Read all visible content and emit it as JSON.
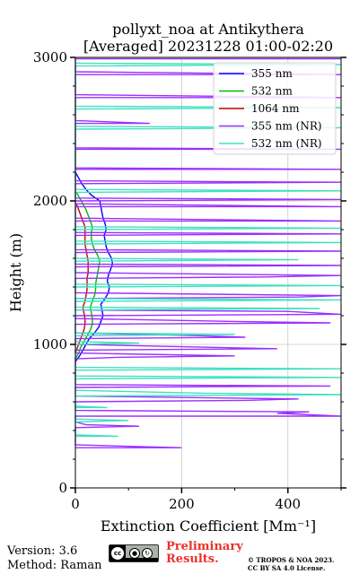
{
  "chart_data": {
    "type": "line",
    "title_line1": "pollyxt_noa at Antikythera",
    "title_line2": "[Averaged] 20231228 01:00-02:20",
    "xlabel": "Extinction Coefficient [Mm⁻¹]",
    "ylabel": "Height (m)",
    "xlim": [
      0,
      500
    ],
    "ylim": [
      0,
      3000
    ],
    "x_ticks": [
      0,
      200,
      400
    ],
    "y_ticks": [
      0,
      1000,
      2000,
      3000
    ],
    "grid": true,
    "legend_position": "top-right",
    "series": [
      {
        "name": "355 nm",
        "color": "#0000ff",
        "points": [
          [
            0,
            880
          ],
          [
            8,
            920
          ],
          [
            14,
            960
          ],
          [
            20,
            1000
          ],
          [
            26,
            1040
          ],
          [
            36,
            1080
          ],
          [
            44,
            1120
          ],
          [
            48,
            1160
          ],
          [
            52,
            1200
          ],
          [
            50,
            1240
          ],
          [
            48,
            1280
          ],
          [
            56,
            1320
          ],
          [
            62,
            1360
          ],
          [
            64,
            1400
          ],
          [
            60,
            1440
          ],
          [
            62,
            1480
          ],
          [
            66,
            1520
          ],
          [
            70,
            1560
          ],
          [
            68,
            1600
          ],
          [
            62,
            1640
          ],
          [
            58,
            1680
          ],
          [
            56,
            1720
          ],
          [
            54,
            1760
          ],
          [
            58,
            1800
          ],
          [
            56,
            1840
          ],
          [
            52,
            1880
          ],
          [
            50,
            1920
          ],
          [
            48,
            1960
          ],
          [
            46,
            2000
          ],
          [
            30,
            2040
          ],
          [
            20,
            2080
          ],
          [
            12,
            2120
          ],
          [
            6,
            2160
          ],
          [
            0,
            2200
          ]
        ]
      },
      {
        "name": "532 nm",
        "color": "#00bb00",
        "points": [
          [
            0,
            900
          ],
          [
            6,
            940
          ],
          [
            10,
            980
          ],
          [
            16,
            1020
          ],
          [
            22,
            1060
          ],
          [
            28,
            1100
          ],
          [
            32,
            1140
          ],
          [
            32,
            1180
          ],
          [
            30,
            1220
          ],
          [
            28,
            1260
          ],
          [
            32,
            1300
          ],
          [
            36,
            1340
          ],
          [
            38,
            1380
          ],
          [
            38,
            1420
          ],
          [
            40,
            1460
          ],
          [
            42,
            1500
          ],
          [
            44,
            1540
          ],
          [
            46,
            1580
          ],
          [
            42,
            1620
          ],
          [
            36,
            1660
          ],
          [
            32,
            1700
          ],
          [
            30,
            1740
          ],
          [
            30,
            1780
          ],
          [
            32,
            1820
          ],
          [
            28,
            1860
          ],
          [
            24,
            1900
          ],
          [
            20,
            1940
          ],
          [
            14,
            1980
          ],
          [
            8,
            2020
          ],
          [
            2,
            2060
          ]
        ]
      },
      {
        "name": "1064 nm",
        "color": "#cc0000",
        "points": [
          [
            0,
            940
          ],
          [
            4,
            980
          ],
          [
            8,
            1020
          ],
          [
            12,
            1060
          ],
          [
            16,
            1100
          ],
          [
            18,
            1140
          ],
          [
            18,
            1180
          ],
          [
            16,
            1220
          ],
          [
            14,
            1260
          ],
          [
            18,
            1300
          ],
          [
            20,
            1340
          ],
          [
            22,
            1380
          ],
          [
            22,
            1420
          ],
          [
            22,
            1460
          ],
          [
            24,
            1500
          ],
          [
            24,
            1540
          ],
          [
            24,
            1580
          ],
          [
            22,
            1620
          ],
          [
            20,
            1660
          ],
          [
            18,
            1700
          ],
          [
            18,
            1740
          ],
          [
            18,
            1780
          ],
          [
            18,
            1820
          ],
          [
            14,
            1860
          ],
          [
            10,
            1900
          ],
          [
            6,
            1940
          ],
          [
            2,
            1980
          ]
        ]
      },
      {
        "name": "355 nm (NR)",
        "color": "#9b30ff",
        "points": [
          [
            0,
            280
          ],
          [
            200,
            280
          ],
          [
            0,
            300
          ],
          [
            0,
            420
          ],
          [
            120,
            430
          ],
          [
            20,
            440
          ],
          [
            0,
            460
          ],
          [
            0,
            500
          ],
          [
            500,
            500
          ],
          [
            380,
            520
          ],
          [
            440,
            530
          ],
          [
            0,
            540
          ],
          [
            0,
            600
          ],
          [
            320,
            610
          ],
          [
            420,
            620
          ],
          [
            0,
            640
          ],
          [
            0,
            700
          ],
          [
            480,
            710
          ],
          [
            0,
            720
          ],
          [
            0,
            900
          ],
          [
            80,
            910
          ],
          [
            300,
            920
          ],
          [
            0,
            940
          ],
          [
            0,
            960
          ],
          [
            380,
            970
          ],
          [
            250,
            980
          ],
          [
            0,
            1000
          ],
          [
            0,
            1040
          ],
          [
            320,
            1050
          ],
          [
            240,
            1060
          ],
          [
            0,
            1080
          ],
          [
            0,
            1140
          ],
          [
            480,
            1150
          ],
          [
            300,
            1160
          ],
          [
            0,
            1180
          ],
          [
            0,
            1200
          ],
          [
            500,
            1210
          ],
          [
            400,
            1230
          ],
          [
            0,
            1240
          ],
          [
            0,
            1320
          ],
          [
            420,
            1330
          ],
          [
            500,
            1340
          ],
          [
            0,
            1360
          ],
          [
            0,
            1460
          ],
          [
            360,
            1470
          ],
          [
            500,
            1480
          ],
          [
            0,
            1500
          ],
          [
            0,
            1540
          ],
          [
            500,
            1550
          ],
          [
            0,
            1560
          ],
          [
            0,
            1640
          ],
          [
            500,
            1650
          ],
          [
            0,
            1660
          ],
          [
            0,
            1760
          ],
          [
            500,
            1770
          ],
          [
            0,
            1780
          ],
          [
            0,
            1860
          ],
          [
            500,
            1860
          ],
          [
            0,
            1880
          ],
          [
            0,
            1960
          ],
          [
            500,
            1960
          ],
          [
            0,
            1980
          ],
          [
            0,
            2000
          ],
          [
            500,
            2010
          ],
          [
            0,
            2020
          ],
          [
            0,
            2120
          ],
          [
            500,
            2130
          ],
          [
            0,
            2140
          ],
          [
            0,
            2220
          ],
          [
            500,
            2220
          ],
          [
            0,
            2230
          ],
          [
            0,
            2360
          ],
          [
            500,
            2360
          ],
          [
            0,
            2370
          ],
          [
            0,
            2540
          ],
          [
            140,
            2540
          ],
          [
            0,
            2560
          ],
          [
            0,
            2720
          ],
          [
            500,
            2720
          ],
          [
            0,
            2740
          ],
          [
            0,
            2880
          ],
          [
            500,
            2880
          ],
          [
            0,
            2900
          ],
          [
            0,
            2990
          ],
          [
            500,
            2990
          ]
        ]
      },
      {
        "name": "532 nm (NR)",
        "color": "#40e0c0",
        "points": [
          [
            0,
            360
          ],
          [
            80,
            360
          ],
          [
            0,
            370
          ],
          [
            0,
            460
          ],
          [
            100,
            470
          ],
          [
            0,
            480
          ],
          [
            0,
            560
          ],
          [
            60,
            560
          ],
          [
            0,
            570
          ],
          [
            0,
            640
          ],
          [
            500,
            650
          ],
          [
            240,
            660
          ],
          [
            0,
            680
          ],
          [
            0,
            760
          ],
          [
            500,
            770
          ],
          [
            0,
            780
          ],
          [
            0,
            820
          ],
          [
            500,
            830
          ],
          [
            0,
            840
          ],
          [
            0,
            1000
          ],
          [
            120,
            1010
          ],
          [
            0,
            1020
          ],
          [
            0,
            1060
          ],
          [
            300,
            1070
          ],
          [
            0,
            1080
          ],
          [
            0,
            1240
          ],
          [
            460,
            1250
          ],
          [
            0,
            1260
          ],
          [
            0,
            1300
          ],
          [
            500,
            1310
          ],
          [
            0,
            1320
          ],
          [
            0,
            1400
          ],
          [
            500,
            1410
          ],
          [
            0,
            1420
          ],
          [
            0,
            1580
          ],
          [
            420,
            1590
          ],
          [
            0,
            1600
          ],
          [
            0,
            1700
          ],
          [
            500,
            1710
          ],
          [
            0,
            1720
          ],
          [
            0,
            1800
          ],
          [
            500,
            1810
          ],
          [
            0,
            1820
          ],
          [
            0,
            2060
          ],
          [
            500,
            2070
          ],
          [
            0,
            2080
          ],
          [
            0,
            2500
          ],
          [
            500,
            2510
          ],
          [
            0,
            2520
          ],
          [
            0,
            2640
          ],
          [
            500,
            2650
          ],
          [
            0,
            2660
          ],
          [
            0,
            2940
          ],
          [
            500,
            2950
          ],
          [
            0,
            2960
          ]
        ]
      }
    ]
  },
  "footer": {
    "version": "Version: 3.6",
    "method": "Method: Raman",
    "preliminary_line1": "Preliminary",
    "preliminary_line2": "Results.",
    "copyright": "© TROPOS & NOA 2023.",
    "license": "CC BY SA 4.0 License.",
    "cc_badge_text": "cc",
    "cc_badge_icons": [
      "by-icon",
      "sa-icon"
    ]
  }
}
